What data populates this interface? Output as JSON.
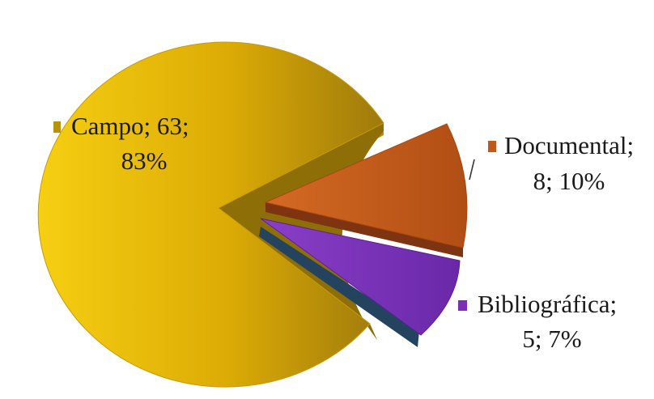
{
  "chart_data": {
    "type": "pie",
    "style": "3d-exploded",
    "categories": [
      "Campo",
      "Documental",
      "Bibliográfica"
    ],
    "values": [
      63,
      8,
      5
    ],
    "percents": [
      83,
      10,
      7
    ],
    "colors": [
      "#e3b200",
      "#c2581c",
      "#7a2fb8"
    ],
    "legend": "inline-labels",
    "labels": [
      {
        "line1": "Campo; 63;",
        "line2": "83%"
      },
      {
        "line1": "Documental;",
        "line2": "8; 10%"
      },
      {
        "line1": "Bibliográfica;",
        "line2": "5; 7%"
      }
    ]
  }
}
